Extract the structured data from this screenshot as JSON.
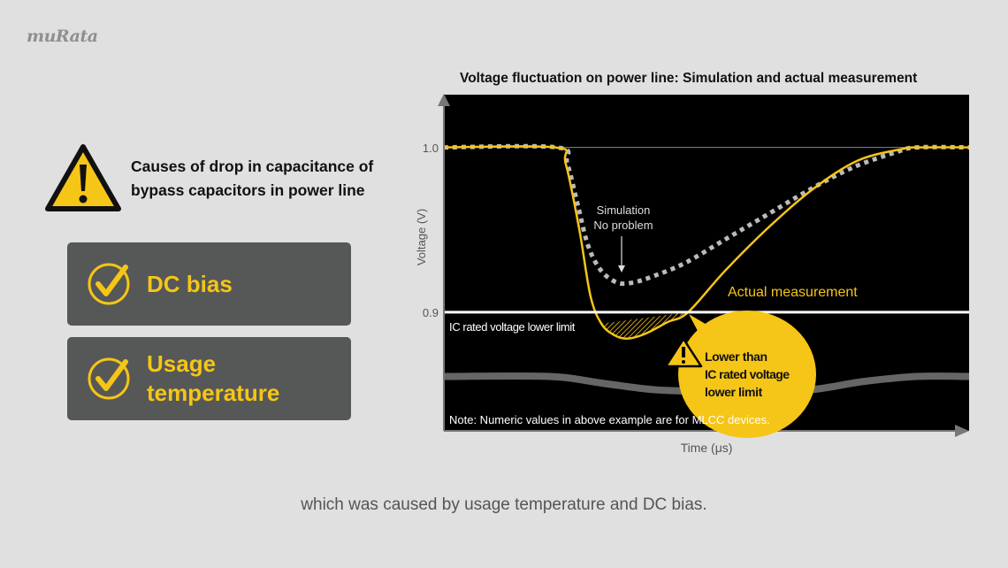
{
  "logo": "muRata",
  "warning": {
    "line1": "Causes of drop in capacitance of",
    "line2": "bypass capacitors in power line"
  },
  "causes": [
    {
      "label": "DC bias"
    },
    {
      "label": "Usage temperature",
      "line1": "Usage",
      "line2": "temperature"
    }
  ],
  "caption": "which was caused by usage temperature and DC bias.",
  "colors": {
    "background": "#dfe0df",
    "accent": "#f5c518",
    "panel": "#555856",
    "plot_bg": "#000000"
  },
  "chart_data": {
    "type": "line",
    "title": "Voltage fluctuation on power line: Simulation and actual measurement",
    "xlabel": "Time (μs)",
    "ylabel": "Voltage (V)",
    "ylim": [
      0.828,
      1.032
    ],
    "xlim": [
      0,
      100
    ],
    "yticks": [
      "1.0",
      "0.9"
    ],
    "grid": false,
    "series": [
      {
        "name": "Actual measurement",
        "style": "solid",
        "color": "#f5c518",
        "x": [
          0,
          21.2,
          23.2,
          25.8,
          27.9,
          30,
          32.5,
          35,
          38.4,
          42.6,
          46.5,
          53.5,
          62,
          70.4,
          78.8,
          87.2,
          90.6,
          100
        ],
        "y": [
          1.0,
          1.0,
          0.99,
          0.95,
          0.91,
          0.893,
          0.886,
          0.884,
          0.887,
          0.894,
          0.9,
          0.925,
          0.952,
          0.975,
          0.992,
          0.999,
          1.0,
          1.0
        ]
      },
      {
        "name": "Simulation",
        "style": "dotted",
        "color": "#bbbbbb",
        "x": [
          0,
          21.5,
          23.5,
          25.5,
          27.5,
          30,
          33,
          36,
          40,
          46,
          54,
          62,
          70,
          78,
          86,
          90,
          100
        ],
        "y": [
          1.0,
          1.0,
          0.99,
          0.965,
          0.94,
          0.925,
          0.918,
          0.918,
          0.922,
          0.93,
          0.945,
          0.96,
          0.975,
          0.988,
          0.997,
          1.0,
          1.0
        ]
      },
      {
        "style": "thick",
        "color": "#666666",
        "x": [
          0,
          20,
          30,
          40,
          50,
          60,
          70,
          80,
          90,
          100
        ],
        "y": [
          0.861,
          0.861,
          0.857,
          0.853,
          0.852,
          0.852,
          0.853,
          0.858,
          0.861,
          0.861
        ]
      }
    ],
    "reference_line": {
      "y": 0.9,
      "label": "IC rated voltage lower limit"
    },
    "annotations": {
      "simulation": {
        "line1": "Simulation",
        "line2": "No problem"
      },
      "actual": "Actual measurement",
      "callout": {
        "line1": "Lower than",
        "line2": "IC rated voltage",
        "line3": "lower limit"
      },
      "note": "Note: Numeric values in above example are for MLCC devices."
    }
  }
}
